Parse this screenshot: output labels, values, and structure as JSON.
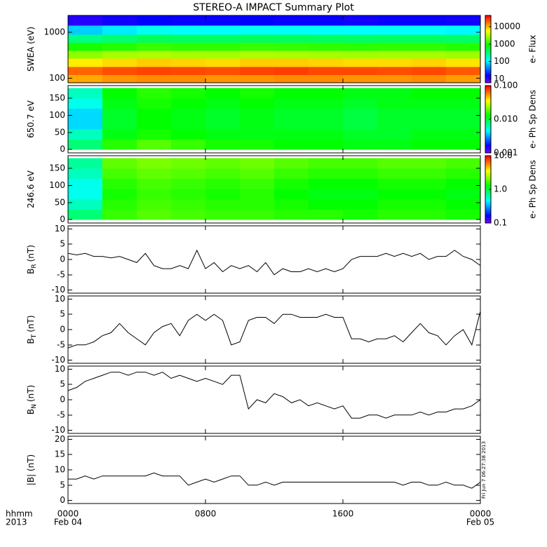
{
  "chart_data": [
    {
      "type": "heatmap",
      "title": "STEREO-A IMPACT Summary Plot",
      "ylabel": "SWEA (eV)",
      "log": true,
      "ylim": [
        80,
        2300
      ],
      "yticks": [
        100,
        1000
      ],
      "xlim": [
        0,
        24
      ],
      "x_edges": [
        0,
        2,
        4,
        6,
        8,
        10,
        12,
        14,
        16,
        18,
        20,
        22,
        24
      ],
      "y_edges": [
        80,
        120,
        180,
        270,
        400,
        600,
        900,
        1400,
        2300
      ],
      "z": [
        [
          12000,
          14000,
          15000,
          15000,
          14000,
          14000,
          15000,
          15000,
          14000,
          14000,
          15000,
          13000
        ],
        [
          20000,
          24000,
          26000,
          25000,
          24000,
          26000,
          27000,
          25000,
          25000,
          24000,
          25000,
          22000
        ],
        [
          7000,
          8000,
          9000,
          8500,
          8000,
          9000,
          9000,
          8500,
          8000,
          8000,
          8500,
          7500
        ],
        [
          2500,
          3000,
          3200,
          3000,
          3000,
          3200,
          3100,
          3000,
          2900,
          3000,
          3000,
          2800
        ],
        [
          1000,
          1100,
          1300,
          1200,
          1200,
          1300,
          1250,
          1200,
          1150,
          1200,
          1200,
          1100
        ],
        [
          300,
          350,
          420,
          400,
          400,
          420,
          410,
          400,
          390,
          400,
          400,
          380
        ],
        [
          80,
          100,
          130,
          120,
          120,
          125,
          125,
          120,
          115,
          120,
          120,
          110
        ],
        [
          12,
          14,
          16,
          15,
          15,
          16,
          15,
          15,
          14,
          15,
          15,
          14
        ]
      ],
      "clim": [
        6,
        44000
      ],
      "cticks": [
        10,
        100,
        1000,
        10000
      ],
      "clabel": "e- Flux"
    },
    {
      "type": "heatmap",
      "ylabel": "650.7 eV",
      "log": false,
      "ylim": [
        -10,
        187
      ],
      "yticks": [
        0,
        50,
        100,
        150
      ],
      "xlim": [
        0,
        24
      ],
      "x_edges": [
        0,
        2,
        4,
        6,
        8,
        10,
        12,
        14,
        16,
        18,
        20,
        22,
        24
      ],
      "y_edges": [
        0,
        30,
        60,
        90,
        120,
        150,
        180
      ],
      "z": [
        [
          0.008,
          0.015,
          0.018,
          0.016,
          0.014,
          0.014,
          0.013,
          0.013,
          0.012,
          0.012,
          0.013,
          0.013
        ],
        [
          0.006,
          0.012,
          0.014,
          0.013,
          0.012,
          0.012,
          0.012,
          0.012,
          0.011,
          0.011,
          0.012,
          0.012
        ],
        [
          0.004,
          0.011,
          0.013,
          0.012,
          0.011,
          0.012,
          0.011,
          0.011,
          0.01,
          0.011,
          0.011,
          0.011
        ],
        [
          0.004,
          0.011,
          0.013,
          0.012,
          0.011,
          0.012,
          0.011,
          0.011,
          0.01,
          0.011,
          0.011,
          0.011
        ],
        [
          0.005,
          0.012,
          0.014,
          0.013,
          0.012,
          0.013,
          0.012,
          0.012,
          0.011,
          0.012,
          0.012,
          0.012
        ],
        [
          0.006,
          0.013,
          0.015,
          0.014,
          0.013,
          0.014,
          0.013,
          0.013,
          0.012,
          0.012,
          0.013,
          0.013
        ]
      ],
      "clim": [
        0.001,
        0.1
      ],
      "cticks": [
        {
          "value": 0.1,
          "label": "0.100"
        },
        {
          "value": 0.01,
          "label": "0.010"
        },
        {
          "value": 0.001,
          "label": "0.001"
        }
      ],
      "clabel": "e- Ph Sp Dens"
    },
    {
      "type": "heatmap",
      "ylabel": "246.6 eV",
      "log": false,
      "ylim": [
        -10,
        187
      ],
      "yticks": [
        0,
        50,
        100,
        150
      ],
      "xlim": [
        0,
        24
      ],
      "x_edges": [
        0,
        2,
        4,
        6,
        8,
        10,
        12,
        14,
        16,
        18,
        20,
        22,
        24
      ],
      "y_edges": [
        0,
        30,
        60,
        90,
        120,
        150,
        180
      ],
      "z": [
        [
          0.8,
          1.6,
          1.8,
          1.7,
          1.6,
          1.6,
          1.5,
          1.5,
          1.4,
          1.5,
          1.5,
          1.4
        ],
        [
          0.6,
          1.5,
          1.7,
          1.6,
          1.5,
          1.5,
          1.4,
          1.3,
          1.3,
          1.4,
          1.4,
          1.3
        ],
        [
          0.5,
          1.4,
          1.6,
          1.5,
          1.4,
          1.5,
          1.3,
          1.2,
          1.2,
          1.3,
          1.3,
          1.2
        ],
        [
          0.5,
          1.5,
          1.7,
          1.6,
          1.5,
          1.6,
          1.4,
          1.3,
          1.3,
          1.4,
          1.4,
          1.3
        ],
        [
          0.6,
          1.7,
          1.9,
          1.8,
          1.7,
          1.8,
          1.6,
          1.5,
          1.5,
          1.6,
          1.6,
          1.5
        ],
        [
          0.7,
          1.9,
          2.1,
          2.0,
          1.9,
          2.0,
          1.8,
          1.7,
          1.7,
          1.8,
          1.8,
          1.7
        ]
      ],
      "clim": [
        0.1,
        10
      ],
      "cticks": [
        {
          "value": 10,
          "label": "10.0"
        },
        {
          "value": 1,
          "label": "1.0"
        },
        0.1
      ],
      "clabel": "e- Ph Sp Dens"
    },
    {
      "type": "line",
      "ylabel": "B",
      "ylabel_sub": "R",
      "ylabel_unit": "(nT)",
      "color": "#000000",
      "ylim": [
        -11,
        11
      ],
      "yticks": [
        -10,
        -5,
        0,
        5,
        10
      ],
      "xlim": [
        0,
        24
      ],
      "x": [
        0,
        0.5,
        1,
        1.5,
        2,
        2.5,
        3,
        3.5,
        4,
        4.5,
        5,
        5.5,
        6,
        6.5,
        7,
        7.5,
        8,
        8.5,
        9,
        9.5,
        10,
        10.5,
        11,
        11.5,
        12,
        12.5,
        13,
        13.5,
        14,
        14.5,
        15,
        15.5,
        16,
        16.5,
        17,
        17.5,
        18,
        18.5,
        19,
        19.5,
        20,
        20.5,
        21,
        21.5,
        22,
        22.5,
        23,
        23.5,
        24
      ],
      "values": [
        2,
        1.5,
        2,
        1,
        1,
        0.5,
        1,
        0,
        -1,
        2,
        -2,
        -3,
        -3,
        -2,
        -3,
        3,
        -3,
        -1,
        -4,
        -2,
        -3,
        -2,
        -4,
        -1,
        -5,
        -3,
        -4,
        -4,
        -3,
        -4,
        -3,
        -4,
        -3,
        0,
        1,
        1,
        1,
        2,
        1,
        2,
        1,
        2,
        0,
        1,
        1,
        3,
        1,
        0,
        -2
      ]
    },
    {
      "type": "line",
      "ylabel": "B",
      "ylabel_sub": "T",
      "ylabel_unit": "(nT)",
      "color": "#000000",
      "ylim": [
        -11,
        11
      ],
      "yticks": [
        -10,
        -5,
        0,
        5,
        10
      ],
      "xlim": [
        0,
        24
      ],
      "x": [
        0,
        0.5,
        1,
        1.5,
        2,
        2.5,
        3,
        3.5,
        4,
        4.5,
        5,
        5.5,
        6,
        6.5,
        7,
        7.5,
        8,
        8.5,
        9,
        9.5,
        10,
        10.5,
        11,
        11.5,
        12,
        12.5,
        13,
        13.5,
        14,
        14.5,
        15,
        15.5,
        16,
        16.5,
        17,
        17.5,
        18,
        18.5,
        19,
        19.5,
        20,
        20.5,
        21,
        21.5,
        22,
        22.5,
        23,
        23.5,
        24
      ],
      "values": [
        -6,
        -5,
        -5,
        -4,
        -2,
        -1,
        2,
        -1,
        -3,
        -5,
        -1,
        1,
        2,
        -2,
        3,
        5,
        3,
        5,
        3,
        -5,
        -4,
        3,
        4,
        4,
        2,
        5,
        5,
        4,
        4,
        4,
        5,
        4,
        4,
        -3,
        -3,
        -4,
        -3,
        -3,
        -2,
        -4,
        -1,
        2,
        -1,
        -2,
        -5,
        -2,
        0,
        -5,
        6
      ]
    },
    {
      "type": "line",
      "ylabel": "B",
      "ylabel_sub": "N",
      "ylabel_unit": "(nT)",
      "color": "#000000",
      "ylim": [
        -11,
        11
      ],
      "yticks": [
        -10,
        -5,
        0,
        5,
        10
      ],
      "xlim": [
        0,
        24
      ],
      "x": [
        0,
        0.5,
        1,
        1.5,
        2,
        2.5,
        3,
        3.5,
        4,
        4.5,
        5,
        5.5,
        6,
        6.5,
        7,
        7.5,
        8,
        8.5,
        9,
        9.5,
        10,
        10.5,
        11,
        11.5,
        12,
        12.5,
        13,
        13.5,
        14,
        14.5,
        15,
        15.5,
        16,
        16.5,
        17,
        17.5,
        18,
        18.5,
        19,
        19.5,
        20,
        20.5,
        21,
        21.5,
        22,
        22.5,
        23,
        23.5,
        24
      ],
      "values": [
        3,
        4,
        6,
        7,
        8,
        9,
        9,
        8,
        9,
        9,
        8,
        9,
        7,
        8,
        7,
        6,
        7,
        6,
        5,
        8,
        8,
        -3,
        0,
        -1,
        2,
        1,
        -1,
        0,
        -2,
        -1,
        -2,
        -3,
        -2,
        -6,
        -6,
        -5,
        -5,
        -6,
        -5,
        -5,
        -5,
        -4,
        -5,
        -4,
        -4,
        -3,
        -3,
        -2,
        0
      ]
    },
    {
      "type": "line",
      "ylabel": "|B| (nT)",
      "color": "#000000",
      "ylim": [
        -1,
        21
      ],
      "yticks": [
        0,
        5,
        10,
        15,
        20
      ],
      "xlim": [
        0,
        24
      ],
      "x": [
        0,
        0.5,
        1,
        1.5,
        2,
        2.5,
        3,
        3.5,
        4,
        4.5,
        5,
        5.5,
        6,
        6.5,
        7,
        7.5,
        8,
        8.5,
        9,
        9.5,
        10,
        10.5,
        11,
        11.5,
        12,
        12.5,
        13,
        13.5,
        14,
        14.5,
        15,
        15.5,
        16,
        16.5,
        17,
        17.5,
        18,
        18.5,
        19,
        19.5,
        20,
        20.5,
        21,
        21.5,
        22,
        22.5,
        23,
        23.5,
        24
      ],
      "values": [
        7,
        7,
        8,
        7,
        8,
        8,
        8,
        8,
        8,
        8,
        9,
        8,
        8,
        8,
        5,
        6,
        7,
        6,
        7,
        8,
        8,
        5,
        5,
        6,
        5,
        6,
        6,
        6,
        6,
        6,
        6,
        6,
        6,
        6,
        6,
        6,
        6,
        6,
        6,
        5,
        6,
        6,
        5,
        5,
        6,
        5,
        5,
        4,
        6
      ],
      "xticks": [
        {
          "value": 0,
          "label": "0000"
        },
        {
          "value": 8,
          "label": "0800"
        },
        {
          "value": 16,
          "label": "1600"
        },
        {
          "value": 24,
          "label": "0000"
        }
      ],
      "xtick_dates": [
        "Feb 04",
        null,
        null,
        "Feb 05"
      ],
      "xlabel_left": [
        "hhmm",
        "2013"
      ],
      "timestamp": "Fri Jun  7 06:27:38 2013"
    }
  ]
}
